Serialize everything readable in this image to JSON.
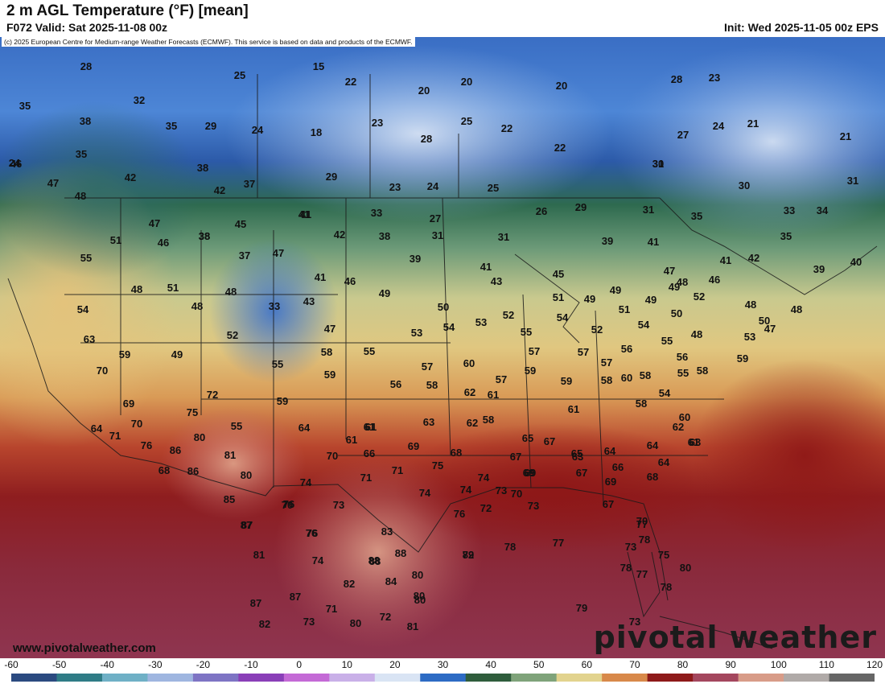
{
  "header": {
    "title": "2 m AGL Temperature (°F) [mean]",
    "valid": "F072 Valid: Sat 2025-11-08 00z",
    "init": "Init: Wed 2025-11-05 00z EPS"
  },
  "credit": "(c) 2025 European Centre for Medium-range Weather Forecasts (ECMWF). This service is based on data and products of the ECMWF.",
  "watermark": {
    "website": "www.pivotalweather.com",
    "brand": "pivotal weather"
  },
  "colorbar": {
    "labels": [
      "-60",
      "-50",
      "-40",
      "-30",
      "-20",
      "-10",
      "0",
      "10",
      "20",
      "30",
      "40",
      "50",
      "60",
      "70",
      "80",
      "90",
      "100",
      "110",
      "120"
    ],
    "stops": [
      "#2b4a80",
      "#2f7c86",
      "#6fb0c6",
      "#9fb6e0",
      "#7e74c4",
      "#8a3fb8",
      "#c46ad6",
      "#c9b0e8",
      "#d9e4f4",
      "#2d6bc4",
      "#2f5d3c",
      "#7fa37a",
      "#e2d38e",
      "#d8894a",
      "#8e1a1a",
      "#a4475e",
      "#d89c88",
      "#b0aaa8",
      "#666666"
    ],
    "min": -60,
    "max": 120
  },
  "map": {
    "temperature_labels": [
      {
        "v": "28"
      },
      {
        "v": "15"
      },
      {
        "v": "25"
      },
      {
        "v": "22"
      },
      {
        "v": "20"
      },
      {
        "v": "20"
      },
      {
        "v": "20"
      },
      {
        "v": "28"
      },
      {
        "v": "23"
      },
      {
        "v": "35"
      },
      {
        "v": "32"
      },
      {
        "v": "38"
      },
      {
        "v": "35"
      },
      {
        "v": "29"
      },
      {
        "v": "24"
      },
      {
        "v": "18"
      },
      {
        "v": "23"
      },
      {
        "v": "25"
      },
      {
        "v": "22"
      },
      {
        "v": "24"
      },
      {
        "v": "21"
      },
      {
        "v": "21"
      },
      {
        "v": "27"
      },
      {
        "v": "31"
      },
      {
        "v": "24"
      },
      {
        "v": "28"
      },
      {
        "v": "22"
      },
      {
        "v": "35"
      },
      {
        "v": "46"
      },
      {
        "v": "42"
      },
      {
        "v": "38"
      },
      {
        "v": "29"
      },
      {
        "v": "23"
      },
      {
        "v": "24"
      },
      {
        "v": "25"
      },
      {
        "v": "30"
      },
      {
        "v": "30"
      },
      {
        "v": "31"
      },
      {
        "v": "37"
      },
      {
        "v": "42"
      },
      {
        "v": "47"
      },
      {
        "v": "48"
      },
      {
        "v": "27"
      },
      {
        "v": "26"
      },
      {
        "v": "29"
      },
      {
        "v": "31"
      },
      {
        "v": "35"
      },
      {
        "v": "33"
      },
      {
        "v": "34"
      },
      {
        "v": "41"
      },
      {
        "v": "33"
      },
      {
        "v": "31"
      },
      {
        "v": "47"
      },
      {
        "v": "45"
      },
      {
        "v": "41"
      },
      {
        "v": "42"
      },
      {
        "v": "38"
      },
      {
        "v": "31"
      },
      {
        "v": "38"
      },
      {
        "v": "39"
      },
      {
        "v": "41"
      },
      {
        "v": "35"
      },
      {
        "v": "51"
      },
      {
        "v": "46"
      },
      {
        "v": "38"
      },
      {
        "v": "47"
      },
      {
        "v": "37"
      },
      {
        "v": "39"
      },
      {
        "v": "41"
      },
      {
        "v": "43"
      },
      {
        "v": "41"
      },
      {
        "v": "42"
      },
      {
        "v": "39"
      },
      {
        "v": "40"
      },
      {
        "v": "55"
      },
      {
        "v": "48"
      },
      {
        "v": "51"
      },
      {
        "v": "48"
      },
      {
        "v": "41"
      },
      {
        "v": "46"
      },
      {
        "v": "49"
      },
      {
        "v": "45"
      },
      {
        "v": "51"
      },
      {
        "v": "49"
      },
      {
        "v": "49"
      },
      {
        "v": "49"
      },
      {
        "v": "52"
      },
      {
        "v": "47"
      },
      {
        "v": "48"
      },
      {
        "v": "46"
      },
      {
        "v": "54"
      },
      {
        "v": "48"
      },
      {
        "v": "33"
      },
      {
        "v": "43"
      },
      {
        "v": "50"
      },
      {
        "v": "52"
      },
      {
        "v": "54"
      },
      {
        "v": "51"
      },
      {
        "v": "49"
      },
      {
        "v": "50"
      },
      {
        "v": "48"
      },
      {
        "v": "48"
      },
      {
        "v": "63"
      },
      {
        "v": "52"
      },
      {
        "v": "47"
      },
      {
        "v": "53"
      },
      {
        "v": "54"
      },
      {
        "v": "53"
      },
      {
        "v": "55"
      },
      {
        "v": "52"
      },
      {
        "v": "54"
      },
      {
        "v": "47"
      },
      {
        "v": "50"
      },
      {
        "v": "59"
      },
      {
        "v": "49"
      },
      {
        "v": "58"
      },
      {
        "v": "55"
      },
      {
        "v": "60"
      },
      {
        "v": "57"
      },
      {
        "v": "57"
      },
      {
        "v": "57"
      },
      {
        "v": "57"
      },
      {
        "v": "56"
      },
      {
        "v": "55"
      },
      {
        "v": "48"
      },
      {
        "v": "53"
      },
      {
        "v": "70"
      },
      {
        "v": "55"
      },
      {
        "v": "59"
      },
      {
        "v": "56"
      },
      {
        "v": "58"
      },
      {
        "v": "59"
      },
      {
        "v": "59"
      },
      {
        "v": "58"
      },
      {
        "v": "58"
      },
      {
        "v": "55"
      },
      {
        "v": "56"
      },
      {
        "v": "59"
      },
      {
        "v": "64"
      },
      {
        "v": "72"
      },
      {
        "v": "58"
      },
      {
        "v": "60"
      },
      {
        "v": "57"
      },
      {
        "v": "54"
      },
      {
        "v": "58"
      },
      {
        "v": "61"
      },
      {
        "v": "69"
      },
      {
        "v": "75"
      },
      {
        "v": "59"
      },
      {
        "v": "61"
      },
      {
        "v": "62"
      },
      {
        "v": "58"
      },
      {
        "v": "60"
      },
      {
        "v": "70"
      },
      {
        "v": "55"
      },
      {
        "v": "64"
      },
      {
        "v": "61"
      },
      {
        "v": "63"
      },
      {
        "v": "62"
      },
      {
        "v": "61"
      },
      {
        "v": "62"
      },
      {
        "v": "61"
      },
      {
        "v": "71"
      },
      {
        "v": "80"
      },
      {
        "v": "61"
      },
      {
        "v": "67"
      },
      {
        "v": "65"
      },
      {
        "v": "63"
      },
      {
        "v": "64"
      },
      {
        "v": "63"
      },
      {
        "v": "76"
      },
      {
        "v": "86"
      },
      {
        "v": "81"
      },
      {
        "v": "70"
      },
      {
        "v": "66"
      },
      {
        "v": "69"
      },
      {
        "v": "68"
      },
      {
        "v": "67"
      },
      {
        "v": "64"
      },
      {
        "v": "65"
      },
      {
        "v": "64"
      },
      {
        "v": "68"
      },
      {
        "v": "86"
      },
      {
        "v": "80"
      },
      {
        "v": "74"
      },
      {
        "v": "71"
      },
      {
        "v": "75"
      },
      {
        "v": "74"
      },
      {
        "v": "70"
      },
      {
        "v": "69"
      },
      {
        "v": "67"
      },
      {
        "v": "66"
      },
      {
        "v": "68"
      },
      {
        "v": "76"
      },
      {
        "v": "71"
      },
      {
        "v": "74"
      },
      {
        "v": "74"
      },
      {
        "v": "73"
      },
      {
        "v": "69"
      },
      {
        "v": "85"
      },
      {
        "v": "70"
      },
      {
        "v": "73"
      },
      {
        "v": "76"
      },
      {
        "v": "72"
      },
      {
        "v": "73"
      },
      {
        "v": "69"
      },
      {
        "v": "67"
      },
      {
        "v": "70"
      },
      {
        "v": "87"
      },
      {
        "v": "81"
      },
      {
        "v": "83"
      },
      {
        "v": "77"
      },
      {
        "v": "87"
      },
      {
        "v": "76"
      },
      {
        "v": "88"
      },
      {
        "v": "88"
      },
      {
        "v": "78"
      },
      {
        "v": "79"
      },
      {
        "v": "78"
      },
      {
        "v": "77"
      },
      {
        "v": "73"
      },
      {
        "v": "75"
      },
      {
        "v": "74"
      },
      {
        "v": "80"
      },
      {
        "v": "76"
      },
      {
        "v": "88"
      },
      {
        "v": "82"
      },
      {
        "v": "84"
      },
      {
        "v": "80"
      },
      {
        "v": "77"
      },
      {
        "v": "78"
      },
      {
        "v": "80"
      },
      {
        "v": "87"
      },
      {
        "v": "87"
      },
      {
        "v": "80"
      },
      {
        "v": "78"
      },
      {
        "v": "71"
      },
      {
        "v": "72"
      },
      {
        "v": "79"
      },
      {
        "v": "82"
      },
      {
        "v": "82"
      },
      {
        "v": "73"
      },
      {
        "v": "80"
      },
      {
        "v": "81"
      },
      {
        "v": "73"
      }
    ]
  }
}
